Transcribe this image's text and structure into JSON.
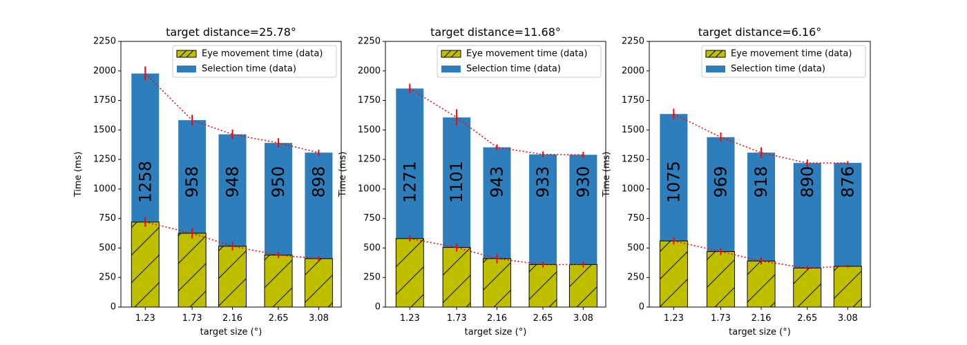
{
  "chart_data": [
    {
      "type": "bar",
      "title": "target distance=25.78°",
      "xlabel": "target size (°)",
      "ylabel": "Time (ms)",
      "ylim": [
        0,
        2250
      ],
      "yticks": [
        0,
        250,
        500,
        750,
        1000,
        1250,
        1500,
        1750,
        2000,
        2250
      ],
      "categories": [
        "1.23",
        "1.73",
        "2.16",
        "2.65",
        "3.08"
      ],
      "x": [
        1.23,
        1.73,
        2.16,
        2.65,
        3.08
      ],
      "series": [
        {
          "name": "Eye movement time (data)",
          "values": [
            720,
            625,
            515,
            440,
            410
          ],
          "err": [
            40,
            45,
            35,
            25,
            25
          ],
          "color": "#bfbf00",
          "hatch": true
        },
        {
          "name": "Selection time (data)",
          "values": [
            1258,
            958,
            948,
            950,
            898
          ],
          "err": [
            60,
            45,
            40,
            40,
            25
          ],
          "color": "#2e7ebb",
          "stacked_on": 0
        }
      ],
      "bar_labels": [
        "1258",
        "958",
        "948",
        "950",
        "898"
      ],
      "legend": "top-right",
      "grid": false
    },
    {
      "type": "bar",
      "title": "target distance=11.68°",
      "xlabel": "target size (°)",
      "ylabel": "Time (ms)",
      "ylim": [
        0,
        2250
      ],
      "yticks": [
        0,
        250,
        500,
        750,
        1000,
        1250,
        1500,
        1750,
        2000,
        2250
      ],
      "categories": [
        "1.23",
        "1.73",
        "2.16",
        "2.65",
        "3.08"
      ],
      "x": [
        1.23,
        1.73,
        2.16,
        2.65,
        3.08
      ],
      "series": [
        {
          "name": "Eye movement time (data)",
          "values": [
            580,
            505,
            410,
            360,
            360
          ],
          "err": [
            25,
            35,
            40,
            25,
            25
          ],
          "color": "#bfbf00",
          "hatch": true
        },
        {
          "name": "Selection time (data)",
          "values": [
            1271,
            1101,
            943,
            933,
            930
          ],
          "err": [
            40,
            70,
            25,
            25,
            25
          ],
          "color": "#2e7ebb",
          "stacked_on": 0
        }
      ],
      "bar_labels": [
        "1271",
        "1101",
        "943",
        "933",
        "930"
      ],
      "legend": "top-right",
      "grid": false
    },
    {
      "type": "bar",
      "title": "target distance=6.16°",
      "xlabel": "target size (°)",
      "ylabel": "Time (ms)",
      "ylim": [
        0,
        2250
      ],
      "yticks": [
        0,
        250,
        500,
        750,
        1000,
        1250,
        1500,
        1750,
        2000,
        2250
      ],
      "categories": [
        "1.23",
        "1.73",
        "2.16",
        "2.65",
        "3.08"
      ],
      "x": [
        1.23,
        1.73,
        2.16,
        2.65,
        3.08
      ],
      "series": [
        {
          "name": "Eye movement time (data)",
          "values": [
            560,
            470,
            390,
            330,
            345
          ],
          "err": [
            30,
            30,
            30,
            20,
            10
          ],
          "color": "#bfbf00",
          "hatch": true
        },
        {
          "name": "Selection time (data)",
          "values": [
            1075,
            969,
            918,
            890,
            876
          ],
          "err": [
            45,
            40,
            45,
            30,
            15
          ],
          "color": "#2e7ebb",
          "stacked_on": 0
        }
      ],
      "bar_labels": [
        "1075",
        "969",
        "918",
        "890",
        "876"
      ],
      "legend": "top-right",
      "grid": false
    }
  ],
  "colors": {
    "eye_movement": "#bfbf00",
    "selection": "#2e7ebb",
    "error_bar": "#ff0000",
    "trend_line": "#ff0000"
  }
}
